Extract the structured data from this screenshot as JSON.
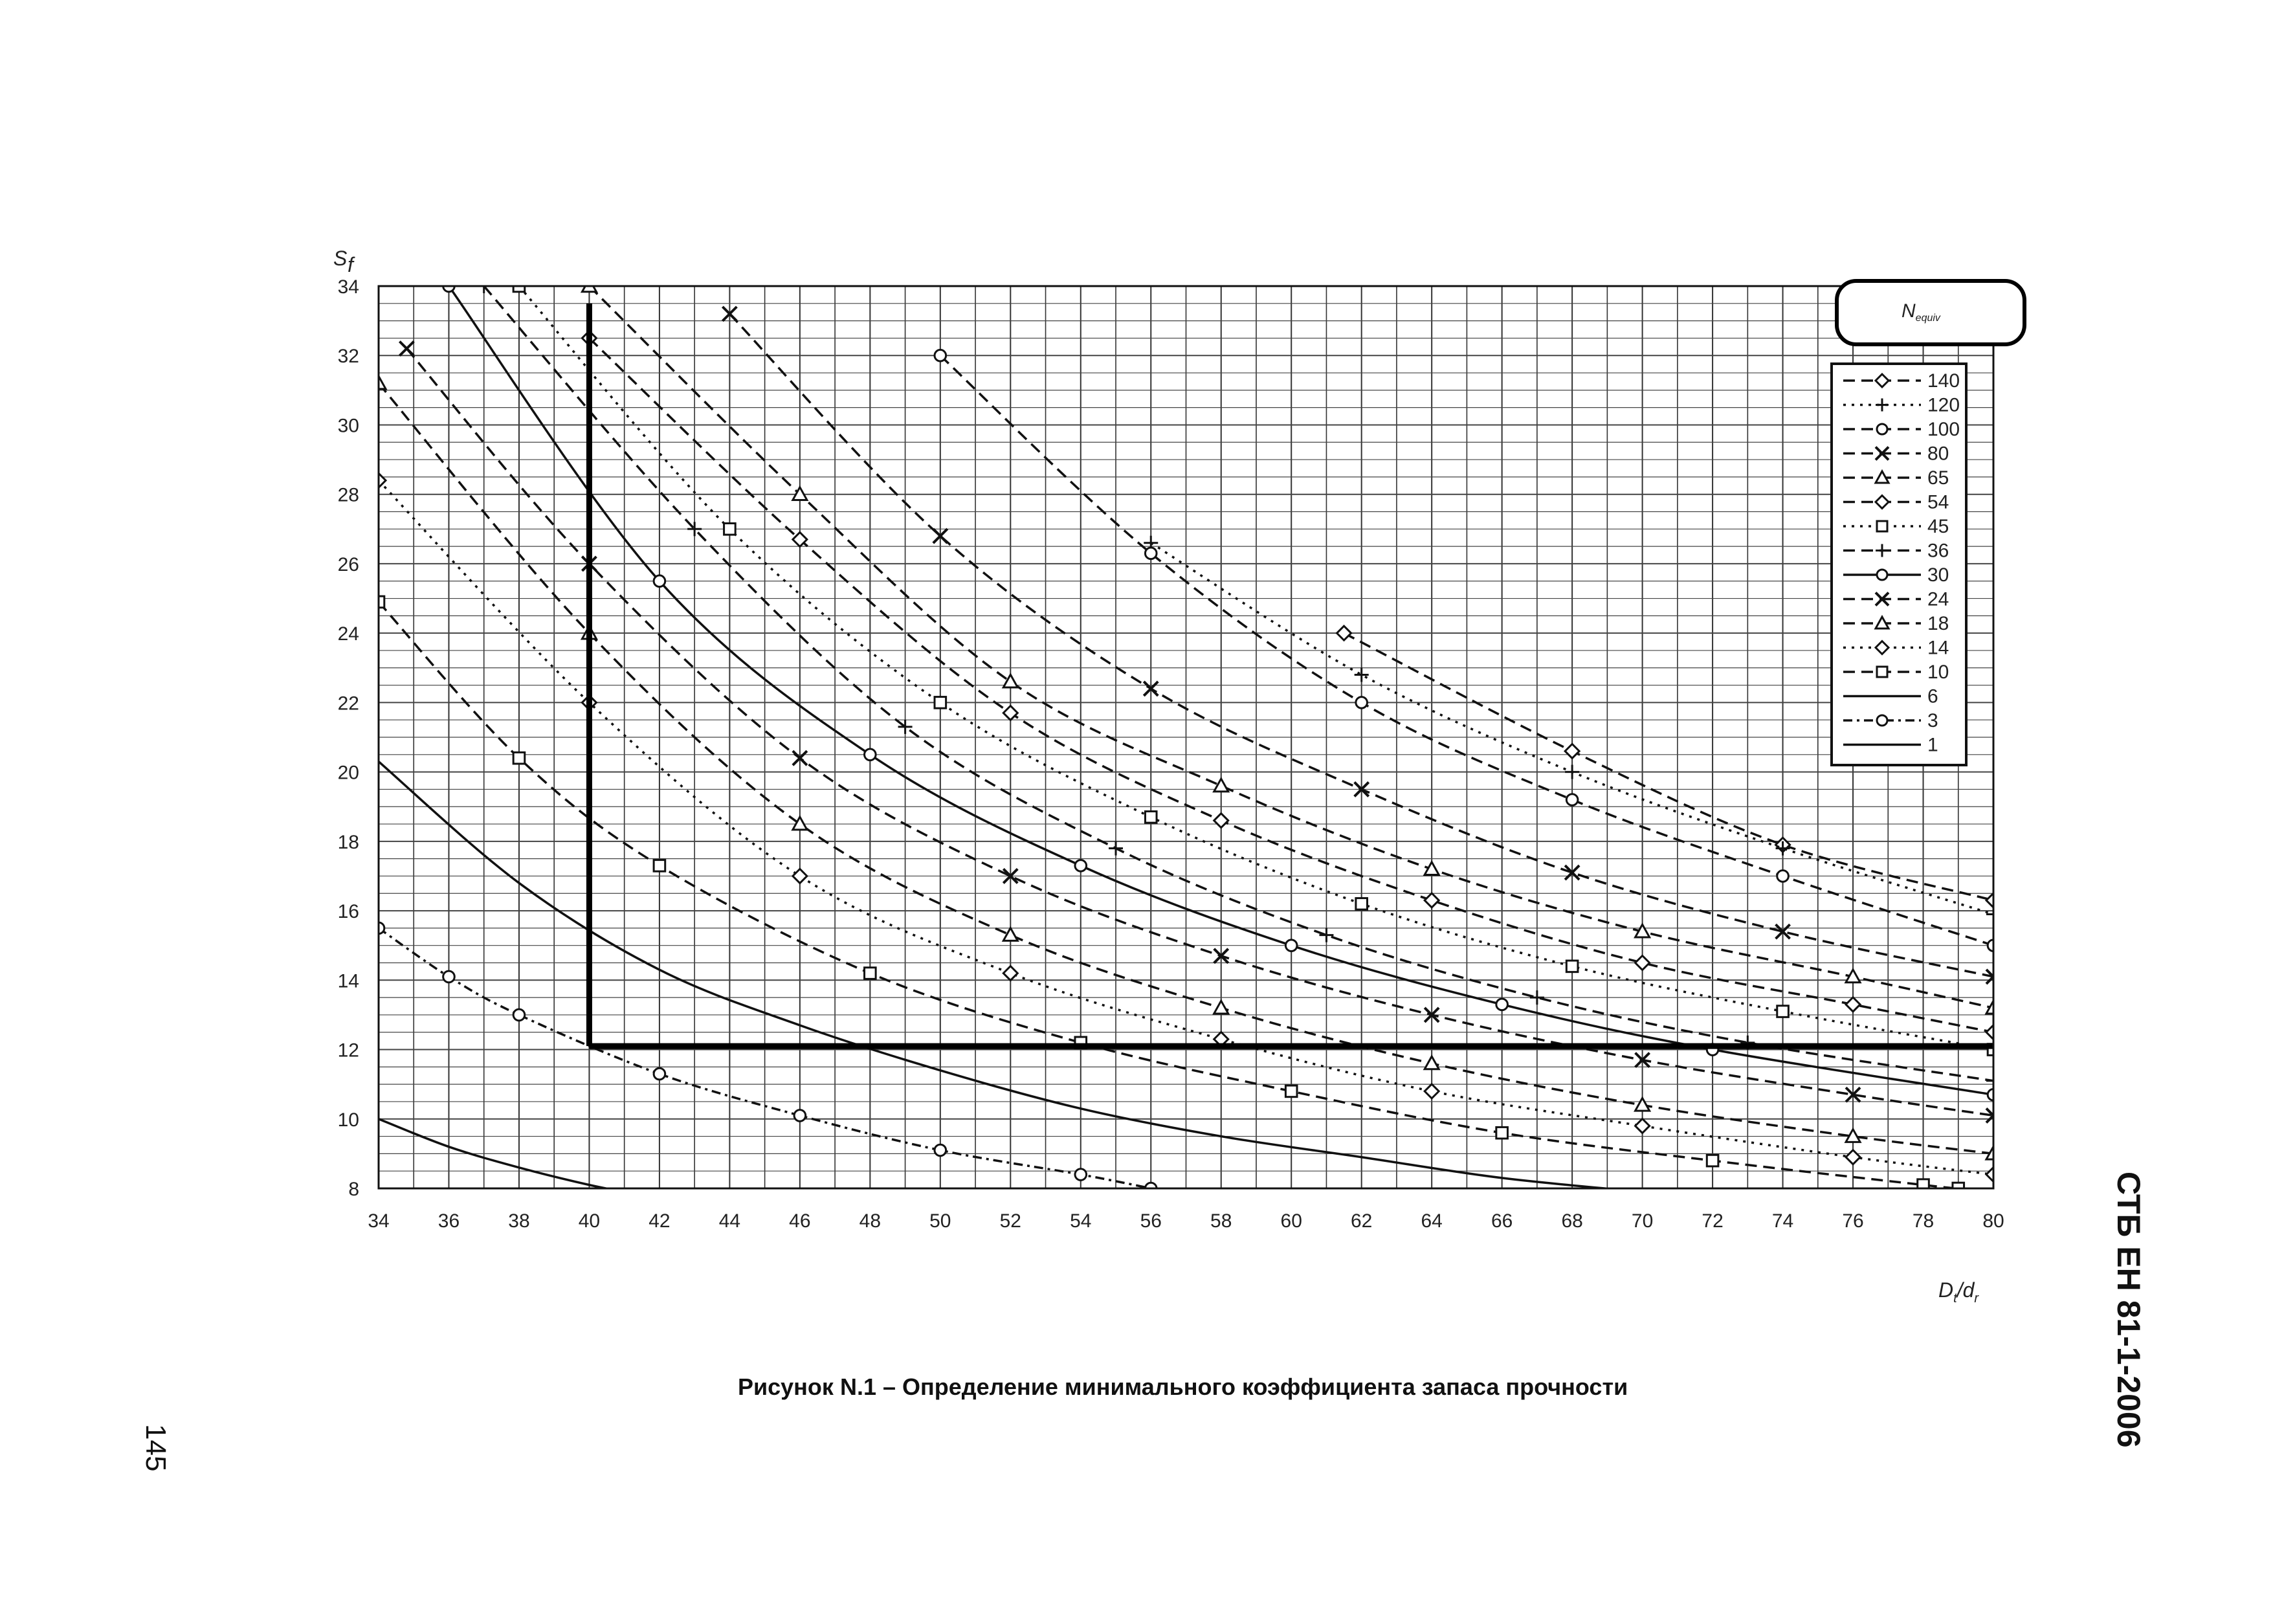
{
  "chart_data": {
    "type": "line",
    "ylabel": "S",
    "ylabel_sub": "f",
    "xlabel": "D",
    "xlabel_sub1": "t",
    "xlabel_mid": "/d",
    "xlabel_sub2": "r",
    "xlim": [
      34,
      80
    ],
    "ylim": [
      8,
      34
    ],
    "x_ticks": [
      "34",
      "36",
      "38",
      "40",
      "42",
      "44",
      "46",
      "48",
      "50",
      "52",
      "54",
      "56",
      "58",
      "60",
      "62",
      "64",
      "66",
      "68",
      "70",
      "72",
      "74",
      "76",
      "78",
      "80"
    ],
    "y_ticks": [
      "8",
      "10",
      "12",
      "14",
      "16",
      "18",
      "20",
      "22",
      "24",
      "26",
      "28",
      "30",
      "32",
      "34"
    ],
    "grid": true,
    "legend_position": "top-right",
    "legend_title": "N",
    "legend_title_sub": "equiv",
    "series": [
      {
        "name": "140",
        "dash": "long",
        "marker": "diamond",
        "points": [
          [
            61.5,
            24
          ],
          [
            68,
            20.6
          ],
          [
            74,
            17.9
          ],
          [
            80,
            16.3
          ]
        ]
      },
      {
        "name": "120",
        "dash": "dot",
        "marker": "plus",
        "points": [
          [
            56,
            26.6
          ],
          [
            62,
            22.8
          ],
          [
            68,
            20.0
          ],
          [
            74,
            17.8
          ],
          [
            80,
            15.9
          ]
        ]
      },
      {
        "name": "100",
        "dash": "long",
        "marker": "circle",
        "points": [
          [
            50,
            32
          ],
          [
            56,
            26.3
          ],
          [
            62,
            22.0
          ],
          [
            68,
            19.2
          ],
          [
            74,
            17.0
          ],
          [
            80,
            15.0
          ]
        ]
      },
      {
        "name": "80",
        "dash": "long",
        "marker": "x",
        "points": [
          [
            44,
            33.2
          ],
          [
            50,
            26.8
          ],
          [
            56,
            22.4
          ],
          [
            62,
            19.5
          ],
          [
            68,
            17.1
          ],
          [
            74,
            15.4
          ],
          [
            80,
            14.1
          ]
        ]
      },
      {
        "name": "65",
        "dash": "long",
        "marker": "triangle",
        "points": [
          [
            40,
            34
          ],
          [
            46,
            28
          ],
          [
            52,
            22.6
          ],
          [
            58,
            19.6
          ],
          [
            64,
            17.2
          ],
          [
            70,
            15.4
          ],
          [
            76,
            14.1
          ],
          [
            80,
            13.2
          ]
        ]
      },
      {
        "name": "54",
        "dash": "long",
        "marker": "diamond",
        "points": [
          [
            40,
            32.5
          ],
          [
            46,
            26.7
          ],
          [
            52,
            21.7
          ],
          [
            58,
            18.6
          ],
          [
            64,
            16.3
          ],
          [
            70,
            14.5
          ],
          [
            76,
            13.3
          ],
          [
            80,
            12.5
          ]
        ]
      },
      {
        "name": "45",
        "dash": "dot",
        "marker": "square",
        "points": [
          [
            38,
            34
          ],
          [
            44,
            27
          ],
          [
            50,
            22.0
          ],
          [
            56,
            18.7
          ],
          [
            62,
            16.2
          ],
          [
            68,
            14.4
          ],
          [
            74,
            13.1
          ],
          [
            80,
            12.0
          ]
        ]
      },
      {
        "name": "36",
        "dash": "long",
        "marker": "plus",
        "points": [
          [
            37,
            34
          ],
          [
            43,
            27
          ],
          [
            49,
            21.3
          ],
          [
            55,
            17.8
          ],
          [
            61,
            15.3
          ],
          [
            67,
            13.5
          ],
          [
            73,
            12.2
          ],
          [
            80,
            11.1
          ]
        ]
      },
      {
        "name": "30",
        "dash": "solid",
        "marker": "circle",
        "points": [
          [
            36,
            34
          ],
          [
            42,
            25.5
          ],
          [
            48,
            20.5
          ],
          [
            54,
            17.3
          ],
          [
            60,
            15.0
          ],
          [
            66,
            13.3
          ],
          [
            72,
            12.0
          ],
          [
            80,
            10.7
          ]
        ]
      },
      {
        "name": "24",
        "dash": "long",
        "marker": "x",
        "points": [
          [
            34.8,
            32.2
          ],
          [
            40,
            26.0
          ],
          [
            46,
            20.4
          ],
          [
            52,
            17.0
          ],
          [
            58,
            14.7
          ],
          [
            64,
            13.0
          ],
          [
            70,
            11.7
          ],
          [
            76,
            10.7
          ],
          [
            80,
            10.1
          ]
        ]
      },
      {
        "name": "18",
        "dash": "long",
        "marker": "triangle",
        "points": [
          [
            34,
            31.2
          ],
          [
            40,
            24.0
          ],
          [
            46,
            18.5
          ],
          [
            52,
            15.3
          ],
          [
            58,
            13.2
          ],
          [
            64,
            11.6
          ],
          [
            70,
            10.4
          ],
          [
            76,
            9.5
          ],
          [
            80,
            9.0
          ]
        ]
      },
      {
        "name": "14",
        "dash": "dot",
        "marker": "diamond",
        "points": [
          [
            34,
            28.4
          ],
          [
            40,
            22.0
          ],
          [
            46,
            17.0
          ],
          [
            52,
            14.2
          ],
          [
            58,
            12.3
          ],
          [
            64,
            10.8
          ],
          [
            70,
            9.8
          ],
          [
            76,
            8.9
          ],
          [
            80,
            8.4
          ]
        ]
      },
      {
        "name": "10",
        "dash": "long",
        "marker": "square",
        "points": [
          [
            34,
            24.9
          ],
          [
            38,
            20.4
          ],
          [
            42,
            17.3
          ],
          [
            48,
            14.2
          ],
          [
            54,
            12.2
          ],
          [
            60,
            10.8
          ],
          [
            66,
            9.6
          ],
          [
            72,
            8.8
          ],
          [
            78,
            8.1
          ],
          [
            79,
            8.0
          ]
        ]
      },
      {
        "name": "6",
        "dash": "solid",
        "marker": "none",
        "points": [
          [
            34,
            20.3
          ],
          [
            38,
            16.8
          ],
          [
            42,
            14.3
          ],
          [
            46,
            12.7
          ],
          [
            50,
            11.4
          ],
          [
            54,
            10.3
          ],
          [
            58,
            9.5
          ],
          [
            62,
            8.9
          ],
          [
            66,
            8.3
          ],
          [
            70,
            7.9
          ]
        ]
      },
      {
        "name": "3",
        "dash": "dotdash",
        "marker": "circle",
        "points": [
          [
            34,
            15.5
          ],
          [
            36,
            14.1
          ],
          [
            38,
            13.0
          ],
          [
            42,
            11.3
          ],
          [
            46,
            10.1
          ],
          [
            50,
            9.1
          ],
          [
            54,
            8.4
          ],
          [
            56,
            8.0
          ]
        ]
      },
      {
        "name": "1",
        "dash": "solid",
        "marker": "none",
        "points": [
          [
            34,
            10.0
          ],
          [
            36,
            9.2
          ],
          [
            38,
            8.6
          ],
          [
            40,
            8.1
          ],
          [
            41.5,
            7.8
          ]
        ]
      }
    ],
    "reference_lines": [
      {
        "from": [
          40,
          33.5
        ],
        "to": [
          40,
          12.1
        ]
      },
      {
        "from": [
          40,
          12.1
        ],
        "to": [
          80,
          12.1
        ]
      }
    ]
  },
  "caption": "Рисунок N.1 – Определение минимального коэффициента запаса прочности",
  "page_number": "145",
  "document_id": "СТБ ЕН 81-1-2006"
}
